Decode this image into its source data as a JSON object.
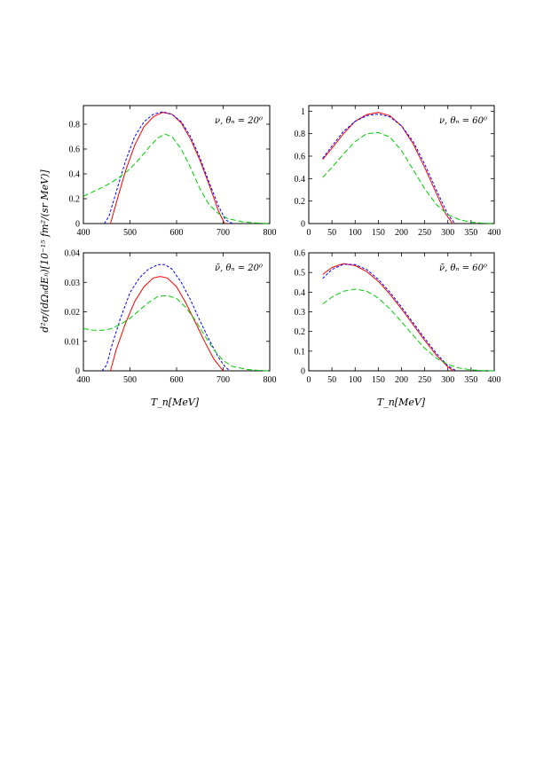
{
  "figure": {
    "xlabel": "T_n[MeV]",
    "ylabel": "d²σ/(dΩₙdEₙ)[10⁻¹⁵ fm²/(sr MeV)]"
  },
  "chart_data": [
    {
      "type": "line",
      "annotation": "ν, θₙ = 20⁰",
      "xlim": [
        400,
        800
      ],
      "ylim": [
        0,
        0.95
      ],
      "xticks": [
        "400",
        "500",
        "600",
        "700",
        "800"
      ],
      "yticks": [
        "0",
        "0.2",
        "0.4",
        "0.6",
        "0.8"
      ],
      "xtick_values": [
        400,
        500,
        600,
        700,
        800
      ],
      "ytick_values": [
        0,
        0.2,
        0.4,
        0.6,
        0.8
      ],
      "series": [
        {
          "color": "#ff0000",
          "dash": "",
          "x": [
            458,
            470,
            490,
            510,
            530,
            550,
            570,
            590,
            610,
            630,
            650,
            670,
            690,
            703
          ],
          "y": [
            0,
            0.16,
            0.42,
            0.63,
            0.78,
            0.86,
            0.895,
            0.88,
            0.81,
            0.68,
            0.51,
            0.31,
            0.1,
            0
          ]
        },
        {
          "color": "#0000ff",
          "dash": "3,2",
          "x": [
            445,
            455,
            470,
            490,
            510,
            530,
            550,
            570,
            590,
            610,
            630,
            650,
            670,
            690,
            705,
            720
          ],
          "y": [
            0,
            0.06,
            0.25,
            0.5,
            0.7,
            0.82,
            0.88,
            0.9,
            0.88,
            0.82,
            0.7,
            0.53,
            0.33,
            0.14,
            0.03,
            0
          ]
        },
        {
          "color": "#00cc00",
          "dash": "6,3",
          "x": [
            400,
            420,
            440,
            460,
            480,
            500,
            520,
            540,
            560,
            575,
            590,
            610,
            630,
            650,
            670,
            690,
            710,
            740,
            770,
            800
          ],
          "y": [
            0.22,
            0.255,
            0.29,
            0.33,
            0.38,
            0.44,
            0.52,
            0.61,
            0.69,
            0.72,
            0.7,
            0.6,
            0.45,
            0.28,
            0.15,
            0.08,
            0.04,
            0.015,
            0.005,
            0
          ]
        }
      ]
    },
    {
      "type": "line",
      "annotation": "ν, θₙ = 60⁰",
      "xlim": [
        0,
        400
      ],
      "ylim": [
        0,
        1.05
      ],
      "xticks": [
        "0",
        "50",
        "100",
        "150",
        "200",
        "250",
        "300",
        "350",
        "400"
      ],
      "yticks": [
        "0",
        "0.2",
        "0.4",
        "0.6",
        "0.8",
        "1"
      ],
      "xtick_values": [
        0,
        50,
        100,
        150,
        200,
        250,
        300,
        350,
        400
      ],
      "ytick_values": [
        0,
        0.2,
        0.4,
        0.6,
        0.8,
        1
      ],
      "series": [
        {
          "color": "#ff0000",
          "dash": "",
          "x": [
            30,
            50,
            75,
            100,
            125,
            150,
            175,
            200,
            225,
            250,
            275,
            295,
            310
          ],
          "y": [
            0.57,
            0.67,
            0.8,
            0.91,
            0.97,
            0.99,
            0.96,
            0.87,
            0.71,
            0.5,
            0.27,
            0.09,
            0
          ]
        },
        {
          "color": "#0000ff",
          "dash": "3,2",
          "x": [
            30,
            50,
            75,
            100,
            125,
            150,
            175,
            200,
            225,
            250,
            275,
            300,
            315
          ],
          "y": [
            0.58,
            0.69,
            0.82,
            0.91,
            0.96,
            0.975,
            0.95,
            0.87,
            0.73,
            0.53,
            0.3,
            0.08,
            0
          ]
        },
        {
          "color": "#00cc00",
          "dash": "6,3",
          "x": [
            30,
            50,
            75,
            100,
            125,
            150,
            175,
            200,
            225,
            250,
            275,
            300,
            325,
            350,
            375,
            400
          ],
          "y": [
            0.41,
            0.5,
            0.62,
            0.73,
            0.8,
            0.81,
            0.77,
            0.65,
            0.48,
            0.31,
            0.17,
            0.08,
            0.035,
            0.012,
            0.004,
            0
          ]
        }
      ]
    },
    {
      "type": "line",
      "annotation": "ν̄, θₙ = 20⁰",
      "xlim": [
        400,
        800
      ],
      "ylim": [
        0,
        0.04
      ],
      "xticks": [
        "400",
        "500",
        "600",
        "700",
        "800"
      ],
      "yticks": [
        "0",
        "0.01",
        "0.02",
        "0.03",
        "0.04"
      ],
      "xtick_values": [
        400,
        500,
        600,
        700,
        800
      ],
      "ytick_values": [
        0,
        0.01,
        0.02,
        0.03,
        0.04
      ],
      "series": [
        {
          "color": "#ff0000",
          "dash": "",
          "x": [
            458,
            470,
            490,
            510,
            530,
            550,
            565,
            580,
            600,
            620,
            640,
            660,
            680,
            700
          ],
          "y": [
            0,
            0.007,
            0.016,
            0.0235,
            0.0285,
            0.0315,
            0.032,
            0.0315,
            0.0285,
            0.023,
            0.0165,
            0.01,
            0.004,
            0
          ]
        },
        {
          "color": "#0000ff",
          "dash": "3,2",
          "x": [
            440,
            450,
            460,
            480,
            500,
            520,
            540,
            560,
            575,
            590,
            610,
            630,
            650,
            670,
            690,
            705,
            715
          ],
          "y": [
            0,
            0.002,
            0.008,
            0.018,
            0.0265,
            0.0315,
            0.0345,
            0.036,
            0.036,
            0.0345,
            0.03,
            0.024,
            0.017,
            0.0105,
            0.0045,
            0.0012,
            0
          ]
        },
        {
          "color": "#00cc00",
          "dash": "6,3",
          "x": [
            400,
            420,
            440,
            460,
            480,
            500,
            520,
            540,
            560,
            580,
            600,
            620,
            640,
            660,
            680,
            700,
            720,
            750,
            780,
            800
          ],
          "y": [
            0.0143,
            0.0138,
            0.0137,
            0.0143,
            0.0158,
            0.0178,
            0.0205,
            0.0232,
            0.0252,
            0.0255,
            0.0245,
            0.0215,
            0.0172,
            0.012,
            0.0072,
            0.0035,
            0.0015,
            0.0005,
            0.0001,
            0
          ]
        }
      ]
    },
    {
      "type": "line",
      "annotation": "ν̄, θₙ = 60⁰",
      "xlim": [
        0,
        400
      ],
      "ylim": [
        0,
        0.6
      ],
      "xticks": [
        "0",
        "50",
        "100",
        "150",
        "200",
        "250",
        "300",
        "350",
        "400"
      ],
      "yticks": [
        "0",
        "0.1",
        "0.2",
        "0.3",
        "0.4",
        "0.5",
        "0.6"
      ],
      "xtick_values": [
        0,
        50,
        100,
        150,
        200,
        250,
        300,
        350,
        400
      ],
      "ytick_values": [
        0,
        0.1,
        0.2,
        0.3,
        0.4,
        0.5,
        0.6
      ],
      "series": [
        {
          "color": "#ff0000",
          "dash": "",
          "x": [
            30,
            50,
            75,
            100,
            125,
            150,
            175,
            200,
            225,
            250,
            275,
            300,
            312
          ],
          "y": [
            0.49,
            0.525,
            0.545,
            0.535,
            0.505,
            0.455,
            0.39,
            0.315,
            0.235,
            0.155,
            0.08,
            0.02,
            0
          ]
        },
        {
          "color": "#0000ff",
          "dash": "3,2",
          "x": [
            30,
            50,
            75,
            100,
            125,
            150,
            175,
            200,
            225,
            250,
            275,
            300,
            318
          ],
          "y": [
            0.47,
            0.515,
            0.542,
            0.54,
            0.515,
            0.465,
            0.4,
            0.325,
            0.245,
            0.165,
            0.09,
            0.025,
            0
          ]
        },
        {
          "color": "#00cc00",
          "dash": "6,3",
          "x": [
            30,
            50,
            75,
            100,
            125,
            150,
            175,
            200,
            225,
            250,
            275,
            300,
            325,
            350,
            375,
            400
          ],
          "y": [
            0.34,
            0.375,
            0.405,
            0.415,
            0.405,
            0.37,
            0.315,
            0.25,
            0.18,
            0.115,
            0.065,
            0.032,
            0.014,
            0.005,
            0.0015,
            0
          ]
        }
      ]
    }
  ]
}
